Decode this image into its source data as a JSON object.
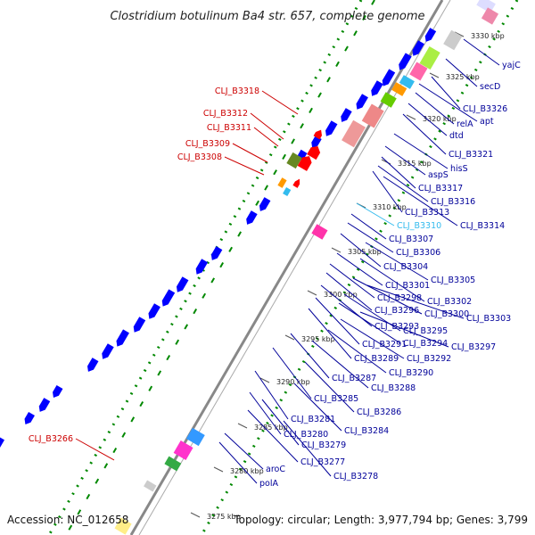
{
  "map": {
    "title": "Clostridium botulinum Ba4 str. 657, complete genome",
    "accession": "Accession: NC_012658",
    "summary": "Topology: circular; Length: 3,977,794 bp; Genes: 3,799",
    "colors": {
      "forward_gene": "#0000ff",
      "reverse_gene": "#ff0000",
      "highlight": "#33bbee",
      "tick_green": "#008800",
      "backbone": "#888888"
    },
    "ticks": [
      "3330 kbp",
      "3325 kbp",
      "3320 kbp",
      "3315 kbp",
      "3310 kbp",
      "3305 kbp",
      "3300 kbp",
      "3295 kbp",
      "3290 kbp",
      "3285 kbp",
      "3280 kbp",
      "3275 kbp"
    ],
    "right_labels": [
      "yajC",
      "secD",
      "CLJ_B3326",
      "apt",
      "relA",
      "dtd",
      "CLJ_B3321",
      "hisS",
      "aspS",
      "CLJ_B3317",
      "CLJ_B3316",
      "CLJ_B3313",
      "CLJ_B3314",
      "CLJ_B3310",
      "CLJ_B3307",
      "CLJ_B3306",
      "CLJ_B3304",
      "CLJ_B3305",
      "CLJ_B3301",
      "CLJ_B3302",
      "CLJ_B3298",
      "CLJ_B3296",
      "CLJ_B3300",
      "CLJ_B3303",
      "CLJ_B3293",
      "CLJ_B3295",
      "CLJ_B3291",
      "CLJ_B3294",
      "CLJ_B3297",
      "CLJ_B3289",
      "CLJ_B3292",
      "CLJ_B3290",
      "CLJ_B3287",
      "CLJ_B3288",
      "CLJ_B3285",
      "CLJ_B3286",
      "CLJ_B3281",
      "CLJ_B3284",
      "CLJ_B3280",
      "CLJ_B3279",
      "CLJ_B3277",
      "CLJ_B3278",
      "aroC",
      "polA"
    ],
    "left_labels": [
      "CLJ_B3318",
      "CLJ_B3312",
      "CLJ_B3311",
      "CLJ_B3309",
      "CLJ_B3308",
      "CLJ_B3266"
    ]
  }
}
